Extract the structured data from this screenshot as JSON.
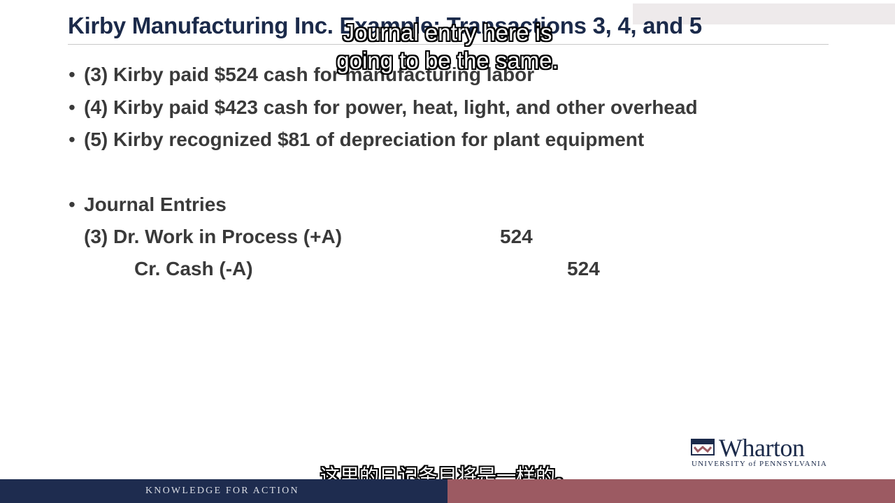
{
  "slide": {
    "title": "Kirby Manufacturing Inc. Example: Transactions 3, 4, and 5",
    "bullet_glyph": "•",
    "bullets": [
      "(3) Kirby paid $524 cash for manufacturing labor",
      "(4) Kirby paid $423 cash for power, heat, light, and other overhead",
      "(5) Kirby recognized $81 of depreciation for plant equipment"
    ],
    "journal_heading": "Journal Entries",
    "entries": [
      {
        "label": "(3) Dr. Work in Process (+A)",
        "debit": "524"
      },
      {
        "label": "Cr. Cash (-A)",
        "credit": "524"
      }
    ]
  },
  "subtitles": {
    "english_line1": "Journal entry here is",
    "english_line2": "going to be the same.",
    "chinese": "这里的日记条目将是一样的。"
  },
  "logo": {
    "wordmark": "Wharton",
    "university": "UNIVERSITY of PENNSYLVANIA"
  },
  "footer": {
    "tagline": "KNOWLEDGE FOR ACTION"
  },
  "colors": {
    "navy": "#1e2c4f",
    "maroon": "#9c5a62",
    "text": "#3a3a3a"
  }
}
